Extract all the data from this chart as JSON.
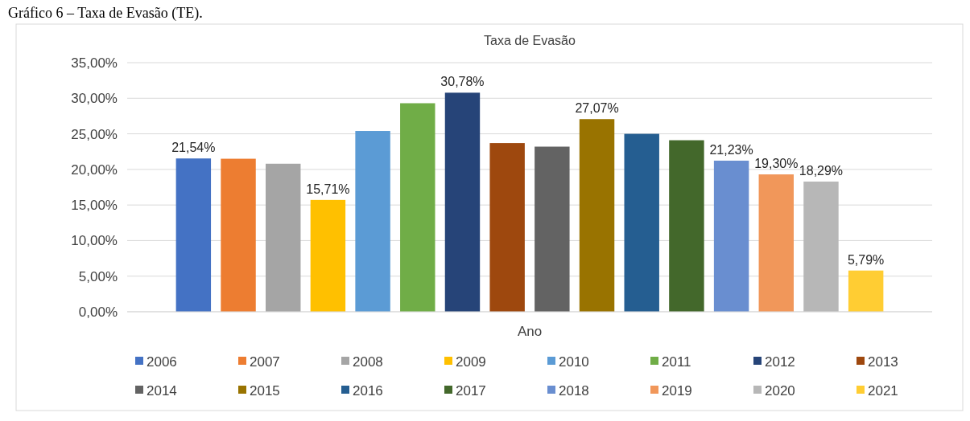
{
  "chart_data": {
    "type": "bar",
    "title": "Taxa de Evasão",
    "xlabel": "Ano",
    "annotations": [
      "Gráfico 6 – Taxa de Evasão (TE)."
    ],
    "categories": [
      null
    ],
    "series": [
      {
        "name": "2006",
        "color": "#4472c4",
        "values": [
          21.54
        ],
        "value_labels": [
          "21,54%"
        ]
      },
      {
        "name": "2007",
        "color": "#ed7d31",
        "values": [
          21.5
        ]
      },
      {
        "name": "2008",
        "color": "#a5a5a5",
        "values": [
          20.8
        ]
      },
      {
        "name": "2009",
        "color": "#ffc000",
        "values": [
          15.71
        ],
        "value_labels": [
          "15,71%"
        ]
      },
      {
        "name": "2010",
        "color": "#5b9bd5",
        "values": [
          25.4
        ]
      },
      {
        "name": "2011",
        "color": "#70ad47",
        "values": [
          29.3
        ]
      },
      {
        "name": "2012",
        "color": "#264478",
        "values": [
          30.78
        ],
        "value_labels": [
          "30,78%"
        ]
      },
      {
        "name": "2013",
        "color": "#9e480e",
        "values": [
          23.7
        ]
      },
      {
        "name": "2014",
        "color": "#636363",
        "values": [
          23.2
        ]
      },
      {
        "name": "2015",
        "color": "#997300",
        "values": [
          27.07
        ],
        "value_labels": [
          "27,07%"
        ]
      },
      {
        "name": "2016",
        "color": "#255e91",
        "values": [
          25.0
        ]
      },
      {
        "name": "2017",
        "color": "#43682b",
        "values": [
          24.1
        ]
      },
      {
        "name": "2018",
        "color": "#698ed0",
        "values": [
          21.23
        ],
        "value_labels": [
          "21,23%"
        ]
      },
      {
        "name": "2019",
        "color": "#f1975a",
        "values": [
          19.3
        ],
        "value_labels": [
          "19,30%"
        ]
      },
      {
        "name": "2020",
        "color": "#b7b7b7",
        "values": [
          18.29
        ],
        "value_labels": [
          "18,29%"
        ]
      },
      {
        "name": "2021",
        "color": "#ffcd33",
        "values": [
          5.79
        ],
        "value_labels": [
          "5,79%"
        ]
      }
    ],
    "ylim": [
      0,
      35
    ],
    "yticks": [
      {
        "value": 0,
        "label": "0,00%"
      },
      {
        "value": 5,
        "label": "5,00%"
      },
      {
        "value": 10,
        "label": "10,00%"
      },
      {
        "value": 15,
        "label": "15,00%"
      },
      {
        "value": 20,
        "label": "20,00%"
      },
      {
        "value": 25,
        "label": "25,00%"
      },
      {
        "value": 30,
        "label": "30,00%"
      },
      {
        "value": 35,
        "label": "35,00%"
      }
    ],
    "grid": "y",
    "legend": "bottom"
  }
}
